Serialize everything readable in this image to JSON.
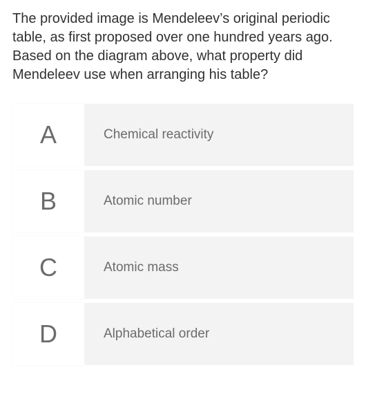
{
  "colors": {
    "question_text": "#313131",
    "letter_bg": "#ffffff",
    "letter_text": "#6b6b6b",
    "option_bg": "#f3f3f3",
    "option_text": "#6b6b6b"
  },
  "question": "The provided image is Mendeleev’s original periodic table, as first proposed over one hundred years ago. Based on the diagram above, what property did Mendeleev use when arranging his table?",
  "options": [
    {
      "letter": "A",
      "text": "Chemical reactivity"
    },
    {
      "letter": "B",
      "text": "Atomic number"
    },
    {
      "letter": "C",
      "text": "Atomic mass"
    },
    {
      "letter": "D",
      "text": "Alphabetical order"
    }
  ]
}
